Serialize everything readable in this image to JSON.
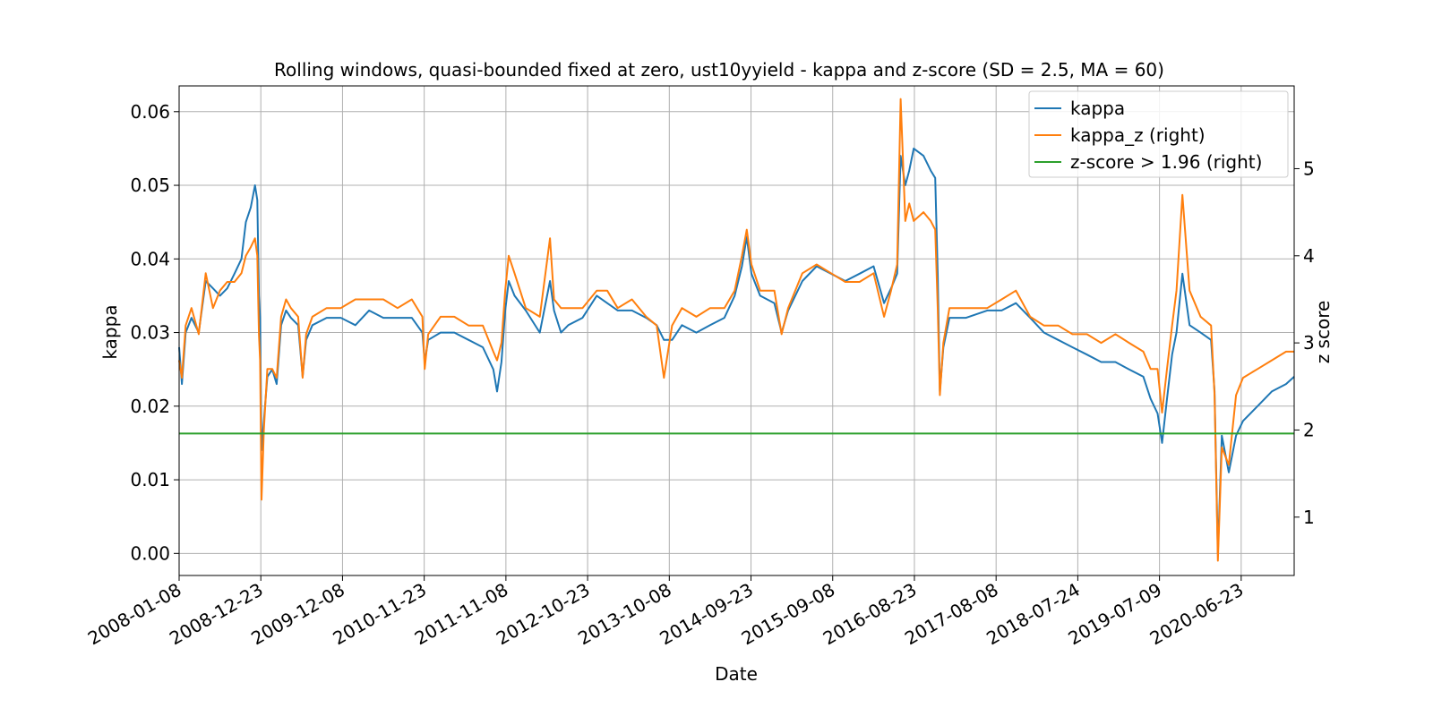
{
  "chart_data": {
    "type": "line",
    "title": "Rolling windows, quasi-bounded fixed at zero, ust10yyield - kappa and z-score (SD = 2.5, MA = 60)",
    "xlabel": "Date",
    "ylabel": "kappa",
    "ylabel_right": "z score",
    "x_tick_labels": [
      "2008-01-08",
      "2008-12-23",
      "2009-12-08",
      "2010-11-23",
      "2011-11-08",
      "2012-10-23",
      "2013-10-08",
      "2014-09-23",
      "2015-09-08",
      "2016-08-23",
      "2017-08-08",
      "2018-07-24",
      "2019-07-09",
      "2020-06-23"
    ],
    "xlim": [
      "2008-01-08",
      "2021-02-05"
    ],
    "ylim_left": [
      -0.003,
      0.0635
    ],
    "y_ticks_left": [
      "0.00",
      "0.01",
      "0.02",
      "0.03",
      "0.04",
      "0.05",
      "0.06"
    ],
    "ylim_right": [
      0.33,
      5.95
    ],
    "y_ticks_right": [
      "1",
      "2",
      "3",
      "4",
      "5"
    ],
    "grid": true,
    "legend_position": "top-right",
    "series": [
      {
        "name": "kappa",
        "axis": "left",
        "color": "#1f77b4",
        "points": [
          [
            "2008-01-08",
            0.028
          ],
          [
            "2008-01-20",
            0.023
          ],
          [
            "2008-02-05",
            0.03
          ],
          [
            "2008-03-01",
            0.032
          ],
          [
            "2008-04-01",
            0.03
          ],
          [
            "2008-05-01",
            0.037
          ],
          [
            "2008-06-01",
            0.036
          ],
          [
            "2008-07-01",
            0.035
          ],
          [
            "2008-08-01",
            0.036
          ],
          [
            "2008-09-01",
            0.038
          ],
          [
            "2008-10-01",
            0.04
          ],
          [
            "2008-10-20",
            0.045
          ],
          [
            "2008-11-10",
            0.047
          ],
          [
            "2008-11-28",
            0.05
          ],
          [
            "2008-12-08",
            0.048
          ],
          [
            "2008-12-15",
            0.035
          ],
          [
            "2008-12-20",
            0.032
          ],
          [
            "2008-12-26",
            0.014
          ],
          [
            "2009-01-05",
            0.018
          ],
          [
            "2009-01-20",
            0.024
          ],
          [
            "2009-02-10",
            0.025
          ],
          [
            "2009-03-01",
            0.023
          ],
          [
            "2009-03-20",
            0.031
          ],
          [
            "2009-04-10",
            0.033
          ],
          [
            "2009-05-01",
            0.032
          ],
          [
            "2009-06-01",
            0.031
          ],
          [
            "2009-06-20",
            0.024
          ],
          [
            "2009-07-05",
            0.029
          ],
          [
            "2009-08-01",
            0.031
          ],
          [
            "2009-10-01",
            0.032
          ],
          [
            "2009-12-01",
            0.032
          ],
          [
            "2010-02-01",
            0.031
          ],
          [
            "2010-04-01",
            0.033
          ],
          [
            "2010-06-01",
            0.032
          ],
          [
            "2010-08-01",
            0.032
          ],
          [
            "2010-10-01",
            0.032
          ],
          [
            "2010-11-15",
            0.03
          ],
          [
            "2010-11-25",
            0.026
          ],
          [
            "2010-12-10",
            0.029
          ],
          [
            "2011-02-01",
            0.03
          ],
          [
            "2011-04-01",
            0.03
          ],
          [
            "2011-06-01",
            0.029
          ],
          [
            "2011-08-01",
            0.028
          ],
          [
            "2011-09-15",
            0.025
          ],
          [
            "2011-10-01",
            0.022
          ],
          [
            "2011-10-20",
            0.026
          ],
          [
            "2011-11-05",
            0.033
          ],
          [
            "2011-11-20",
            0.037
          ],
          [
            "2011-12-15",
            0.035
          ],
          [
            "2012-02-01",
            0.033
          ],
          [
            "2012-04-01",
            0.03
          ],
          [
            "2012-05-15",
            0.037
          ],
          [
            "2012-06-01",
            0.033
          ],
          [
            "2012-07-01",
            0.03
          ],
          [
            "2012-08-01",
            0.031
          ],
          [
            "2012-10-01",
            0.032
          ],
          [
            "2012-12-01",
            0.035
          ],
          [
            "2013-01-15",
            0.034
          ],
          [
            "2013-03-01",
            0.033
          ],
          [
            "2013-05-01",
            0.033
          ],
          [
            "2013-07-01",
            0.032
          ],
          [
            "2013-08-15",
            0.031
          ],
          [
            "2013-09-15",
            0.029
          ],
          [
            "2013-10-20",
            0.029
          ],
          [
            "2013-12-01",
            0.031
          ],
          [
            "2014-02-01",
            0.03
          ],
          [
            "2014-04-01",
            0.031
          ],
          [
            "2014-06-01",
            0.032
          ],
          [
            "2014-07-15",
            0.035
          ],
          [
            "2014-08-15",
            0.039
          ],
          [
            "2014-09-05",
            0.043
          ],
          [
            "2014-09-25",
            0.038
          ],
          [
            "2014-11-01",
            0.035
          ],
          [
            "2015-01-01",
            0.034
          ],
          [
            "2015-02-01",
            0.03
          ],
          [
            "2015-03-01",
            0.033
          ],
          [
            "2015-05-01",
            0.037
          ],
          [
            "2015-07-01",
            0.039
          ],
          [
            "2015-09-01",
            0.038
          ],
          [
            "2015-11-01",
            0.037
          ],
          [
            "2016-01-01",
            0.038
          ],
          [
            "2016-03-01",
            0.039
          ],
          [
            "2016-04-15",
            0.034
          ],
          [
            "2016-05-15",
            0.036
          ],
          [
            "2016-06-10",
            0.038
          ],
          [
            "2016-06-25",
            0.054
          ],
          [
            "2016-07-15",
            0.05
          ],
          [
            "2016-08-01",
            0.052
          ],
          [
            "2016-08-20",
            0.055
          ],
          [
            "2016-10-01",
            0.054
          ],
          [
            "2016-11-01",
            0.052
          ],
          [
            "2016-11-20",
            0.051
          ],
          [
            "2016-12-01",
            0.038
          ],
          [
            "2016-12-10",
            0.022
          ],
          [
            "2016-12-25",
            0.028
          ],
          [
            "2017-01-20",
            0.032
          ],
          [
            "2017-04-01",
            0.032
          ],
          [
            "2017-07-01",
            0.033
          ],
          [
            "2017-09-01",
            0.033
          ],
          [
            "2017-11-01",
            0.034
          ],
          [
            "2018-01-01",
            0.032
          ],
          [
            "2018-03-01",
            0.03
          ],
          [
            "2018-05-01",
            0.029
          ],
          [
            "2018-07-01",
            0.028
          ],
          [
            "2018-09-01",
            0.027
          ],
          [
            "2018-11-01",
            0.026
          ],
          [
            "2019-01-01",
            0.026
          ],
          [
            "2019-03-01",
            0.025
          ],
          [
            "2019-05-01",
            0.024
          ],
          [
            "2019-06-01",
            0.021
          ],
          [
            "2019-07-01",
            0.019
          ],
          [
            "2019-07-20",
            0.015
          ],
          [
            "2019-08-10",
            0.021
          ],
          [
            "2019-09-01",
            0.027
          ],
          [
            "2019-09-20",
            0.03
          ],
          [
            "2019-10-15",
            0.038
          ],
          [
            "2019-11-15",
            0.031
          ],
          [
            "2020-01-01",
            0.03
          ],
          [
            "2020-02-15",
            0.029
          ],
          [
            "2020-03-01",
            0.022
          ],
          [
            "2020-03-15",
            0.0
          ],
          [
            "2020-04-01",
            0.016
          ],
          [
            "2020-05-01",
            0.011
          ],
          [
            "2020-06-01",
            0.016
          ],
          [
            "2020-07-01",
            0.018
          ],
          [
            "2020-09-01",
            0.02
          ],
          [
            "2020-11-01",
            0.022
          ],
          [
            "2021-01-01",
            0.023
          ],
          [
            "2021-02-05",
            0.024
          ]
        ]
      },
      {
        "name": "kappa_z (right)",
        "axis": "right",
        "color": "#ff7f0e",
        "points": [
          [
            "2008-01-08",
            2.8
          ],
          [
            "2008-01-20",
            2.6
          ],
          [
            "2008-02-05",
            3.2
          ],
          [
            "2008-03-01",
            3.4
          ],
          [
            "2008-04-01",
            3.1
          ],
          [
            "2008-05-01",
            3.8
          ],
          [
            "2008-06-01",
            3.4
          ],
          [
            "2008-07-01",
            3.6
          ],
          [
            "2008-08-01",
            3.7
          ],
          [
            "2008-09-01",
            3.7
          ],
          [
            "2008-10-01",
            3.8
          ],
          [
            "2008-10-20",
            4.0
          ],
          [
            "2008-11-10",
            4.1
          ],
          [
            "2008-11-28",
            4.2
          ],
          [
            "2008-12-08",
            4.0
          ],
          [
            "2008-12-15",
            3.1
          ],
          [
            "2008-12-20",
            2.8
          ],
          [
            "2008-12-26",
            1.2
          ],
          [
            "2009-01-05",
            2.0
          ],
          [
            "2009-01-20",
            2.7
          ],
          [
            "2009-02-10",
            2.7
          ],
          [
            "2009-03-01",
            2.6
          ],
          [
            "2009-03-20",
            3.3
          ],
          [
            "2009-04-10",
            3.5
          ],
          [
            "2009-05-01",
            3.4
          ],
          [
            "2009-06-01",
            3.3
          ],
          [
            "2009-06-20",
            2.6
          ],
          [
            "2009-07-05",
            3.1
          ],
          [
            "2009-08-01",
            3.3
          ],
          [
            "2009-10-01",
            3.4
          ],
          [
            "2009-12-01",
            3.4
          ],
          [
            "2010-02-01",
            3.5
          ],
          [
            "2010-04-01",
            3.5
          ],
          [
            "2010-06-01",
            3.5
          ],
          [
            "2010-08-01",
            3.4
          ],
          [
            "2010-10-01",
            3.5
          ],
          [
            "2010-11-15",
            3.3
          ],
          [
            "2010-11-25",
            2.7
          ],
          [
            "2010-12-10",
            3.1
          ],
          [
            "2011-02-01",
            3.3
          ],
          [
            "2011-04-01",
            3.3
          ],
          [
            "2011-06-01",
            3.2
          ],
          [
            "2011-08-01",
            3.2
          ],
          [
            "2011-09-15",
            2.9
          ],
          [
            "2011-10-01",
            2.8
          ],
          [
            "2011-10-20",
            3.0
          ],
          [
            "2011-11-05",
            3.6
          ],
          [
            "2011-11-20",
            4.0
          ],
          [
            "2011-12-15",
            3.8
          ],
          [
            "2012-02-01",
            3.4
          ],
          [
            "2012-04-01",
            3.3
          ],
          [
            "2012-05-15",
            4.2
          ],
          [
            "2012-06-01",
            3.5
          ],
          [
            "2012-07-01",
            3.4
          ],
          [
            "2012-08-01",
            3.4
          ],
          [
            "2012-10-01",
            3.4
          ],
          [
            "2012-12-01",
            3.6
          ],
          [
            "2013-01-15",
            3.6
          ],
          [
            "2013-03-01",
            3.4
          ],
          [
            "2013-05-01",
            3.5
          ],
          [
            "2013-07-01",
            3.3
          ],
          [
            "2013-08-15",
            3.2
          ],
          [
            "2013-09-15",
            2.6
          ],
          [
            "2013-10-20",
            3.2
          ],
          [
            "2013-12-01",
            3.4
          ],
          [
            "2014-02-01",
            3.3
          ],
          [
            "2014-04-01",
            3.4
          ],
          [
            "2014-06-01",
            3.4
          ],
          [
            "2014-07-15",
            3.6
          ],
          [
            "2014-08-15",
            4.0
          ],
          [
            "2014-09-05",
            4.3
          ],
          [
            "2014-09-25",
            3.9
          ],
          [
            "2014-11-01",
            3.6
          ],
          [
            "2015-01-01",
            3.6
          ],
          [
            "2015-02-01",
            3.1
          ],
          [
            "2015-03-01",
            3.4
          ],
          [
            "2015-05-01",
            3.8
          ],
          [
            "2015-07-01",
            3.9
          ],
          [
            "2015-09-01",
            3.8
          ],
          [
            "2015-11-01",
            3.7
          ],
          [
            "2016-01-01",
            3.7
          ],
          [
            "2016-03-01",
            3.8
          ],
          [
            "2016-04-15",
            3.3
          ],
          [
            "2016-05-15",
            3.6
          ],
          [
            "2016-06-10",
            3.9
          ],
          [
            "2016-06-25",
            5.8
          ],
          [
            "2016-07-15",
            4.4
          ],
          [
            "2016-08-01",
            4.6
          ],
          [
            "2016-08-20",
            4.4
          ],
          [
            "2016-10-01",
            4.5
          ],
          [
            "2016-11-01",
            4.4
          ],
          [
            "2016-11-20",
            4.3
          ],
          [
            "2016-12-01",
            3.4
          ],
          [
            "2016-12-10",
            2.4
          ],
          [
            "2016-12-25",
            3.0
          ],
          [
            "2017-01-20",
            3.4
          ],
          [
            "2017-04-01",
            3.4
          ],
          [
            "2017-07-01",
            3.4
          ],
          [
            "2017-09-01",
            3.5
          ],
          [
            "2017-11-01",
            3.6
          ],
          [
            "2018-01-01",
            3.3
          ],
          [
            "2018-03-01",
            3.2
          ],
          [
            "2018-05-01",
            3.2
          ],
          [
            "2018-07-01",
            3.1
          ],
          [
            "2018-09-01",
            3.1
          ],
          [
            "2018-11-01",
            3.0
          ],
          [
            "2019-01-01",
            3.1
          ],
          [
            "2019-03-01",
            3.0
          ],
          [
            "2019-05-01",
            2.9
          ],
          [
            "2019-06-01",
            2.7
          ],
          [
            "2019-07-01",
            2.7
          ],
          [
            "2019-07-20",
            2.2
          ],
          [
            "2019-08-10",
            2.7
          ],
          [
            "2019-09-01",
            3.2
          ],
          [
            "2019-09-20",
            3.6
          ],
          [
            "2019-10-15",
            4.7
          ],
          [
            "2019-11-15",
            3.6
          ],
          [
            "2020-01-01",
            3.3
          ],
          [
            "2020-02-15",
            3.2
          ],
          [
            "2020-03-01",
            2.4
          ],
          [
            "2020-03-15",
            0.5
          ],
          [
            "2020-04-01",
            1.8
          ],
          [
            "2020-05-01",
            1.6
          ],
          [
            "2020-06-01",
            2.4
          ],
          [
            "2020-07-01",
            2.6
          ],
          [
            "2020-09-01",
            2.7
          ],
          [
            "2020-11-01",
            2.8
          ],
          [
            "2021-01-01",
            2.9
          ],
          [
            "2021-02-05",
            2.9
          ]
        ]
      },
      {
        "name": "z-score > 1.96 (right)",
        "axis": "right",
        "color": "#2ca02c",
        "points": [
          [
            "2008-01-08",
            1.96
          ],
          [
            "2021-02-05",
            1.96
          ]
        ]
      }
    ]
  }
}
